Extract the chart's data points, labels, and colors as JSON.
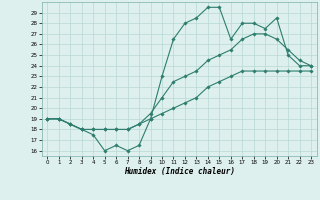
{
  "xlabel": "Humidex (Indice chaleur)",
  "x_hours": [
    0,
    1,
    2,
    3,
    4,
    5,
    6,
    7,
    8,
    9,
    10,
    11,
    12,
    13,
    14,
    15,
    16,
    17,
    18,
    19,
    20,
    21,
    22,
    23
  ],
  "line1": [
    19,
    19,
    18.5,
    18,
    17.5,
    16,
    16.5,
    16,
    16.5,
    19,
    23,
    26.5,
    28,
    28.5,
    29.5,
    29.5,
    26.5,
    28,
    28,
    27.5,
    28.5,
    25,
    24,
    24
  ],
  "line2": [
    19,
    19,
    18.5,
    18,
    18,
    18,
    18,
    18,
    18.5,
    19.5,
    21,
    22.5,
    23,
    23.5,
    24.5,
    25,
    25.5,
    26.5,
    27,
    27,
    26.5,
    25.5,
    24.5,
    24
  ],
  "line3": [
    19,
    19,
    18.5,
    18,
    18,
    18,
    18,
    18,
    18.5,
    19,
    19.5,
    20,
    20.5,
    21,
    22,
    22.5,
    23,
    23.5,
    23.5,
    23.5,
    23.5,
    23.5,
    23.5,
    23.5
  ],
  "ylim": [
    15.5,
    30
  ],
  "xlim": [
    -0.5,
    23.5
  ],
  "yticks": [
    16,
    17,
    18,
    19,
    20,
    21,
    22,
    23,
    24,
    25,
    26,
    27,
    28,
    29
  ],
  "xticks": [
    0,
    1,
    2,
    3,
    4,
    5,
    6,
    7,
    8,
    9,
    10,
    11,
    12,
    13,
    14,
    15,
    16,
    17,
    18,
    19,
    20,
    21,
    22,
    23
  ],
  "line_color": "#2e7d6e",
  "bg_color": "#ddf0ee",
  "grid_color": "#b8d8d4",
  "fig_bg": "#ddf0ee"
}
